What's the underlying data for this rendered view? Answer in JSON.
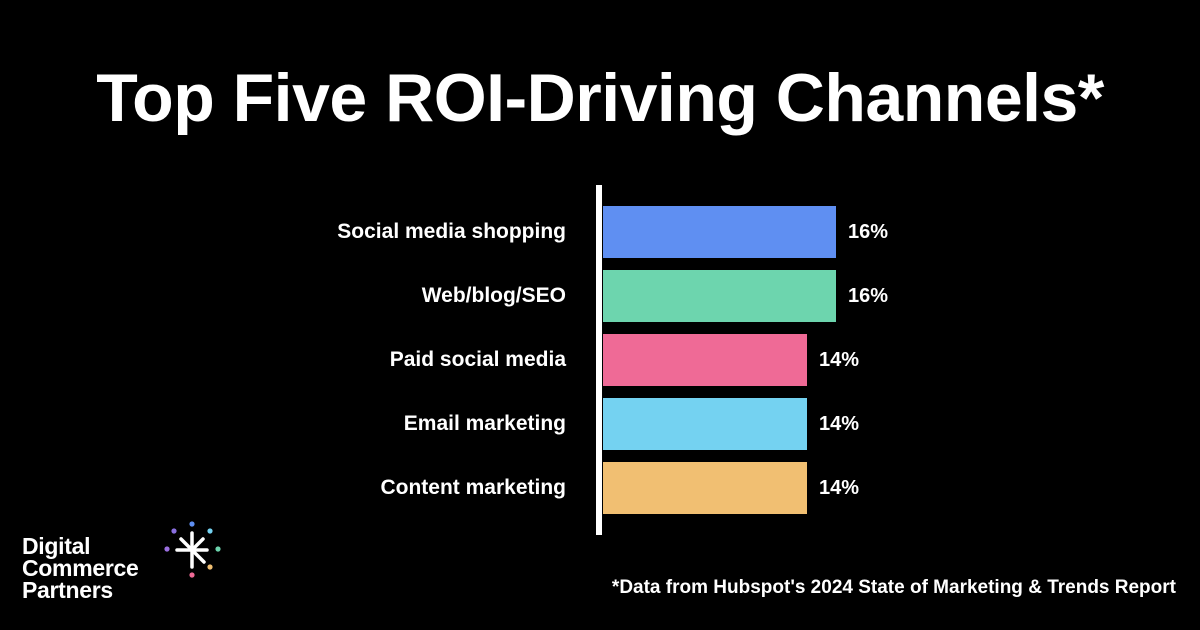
{
  "title": "Top Five ROI-Driving Channels*",
  "chart_data": {
    "type": "bar",
    "orientation": "horizontal",
    "title": "Top Five ROI-Driving Channels*",
    "categories": [
      "Social media shopping",
      "Web/blog/SEO",
      "Paid social media",
      "Email marketing",
      "Content marketing"
    ],
    "values": [
      16,
      16,
      14,
      14,
      14
    ],
    "value_labels": [
      "16%",
      "16%",
      "14%",
      "14%",
      "14%"
    ],
    "colors": [
      "#5f8ff2",
      "#6dd5ae",
      "#ef6a96",
      "#74d2f1",
      "#f1bf72"
    ],
    "xlabel": "",
    "ylabel": "",
    "unit": "%",
    "grid": false,
    "legend": null
  },
  "logo": {
    "lines": [
      "Digital",
      "Commerce",
      "Partners"
    ]
  },
  "footnote": "*Data from Hubspot's 2024 State of Marketing & Trends Report"
}
